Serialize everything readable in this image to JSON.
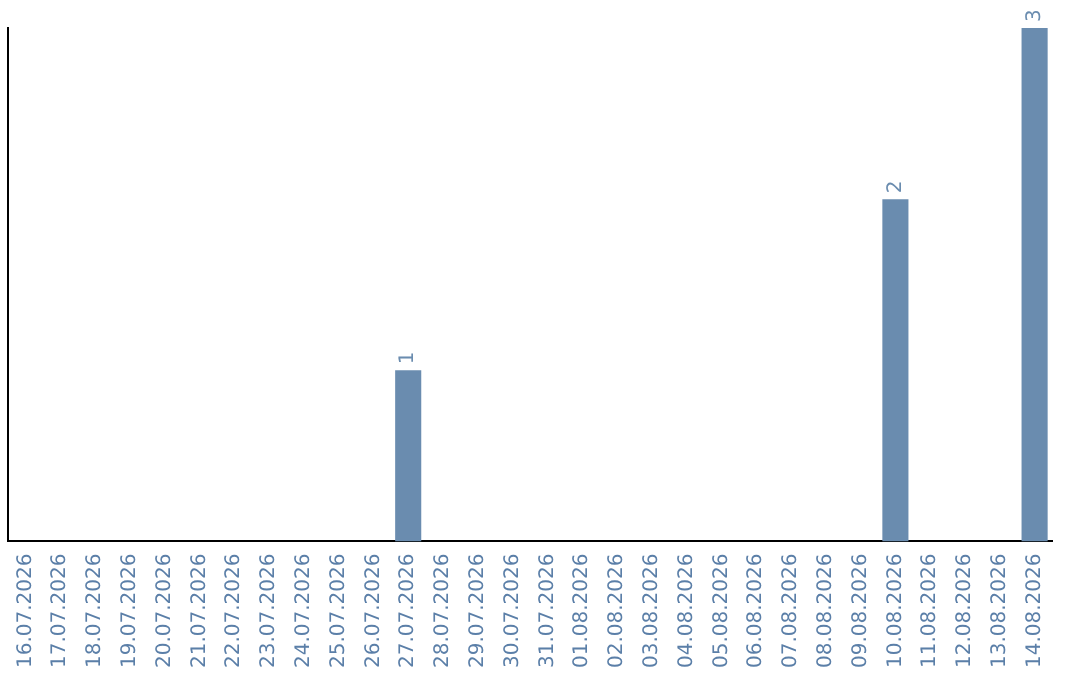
{
  "chart_data": {
    "type": "bar",
    "categories": [
      "16.07.2026",
      "17.07.2026",
      "18.07.2026",
      "19.07.2026",
      "20.07.2026",
      "21.07.2026",
      "22.07.2026",
      "23.07.2026",
      "24.07.2026",
      "25.07.2026",
      "26.07.2026",
      "27.07.2026",
      "28.07.2026",
      "29.07.2026",
      "30.07.2026",
      "31.07.2026",
      "01.08.2026",
      "02.08.2026",
      "03.08.2026",
      "04.08.2026",
      "05.08.2026",
      "06.08.2026",
      "07.08.2026",
      "08.08.2026",
      "09.08.2026",
      "10.08.2026",
      "11.08.2026",
      "12.08.2026",
      "13.08.2026",
      "14.08.2026"
    ],
    "values": [
      0,
      0,
      0,
      0,
      0,
      0,
      0,
      0,
      0,
      0,
      0,
      1,
      0,
      0,
      0,
      0,
      0,
      0,
      0,
      0,
      0,
      0,
      0,
      0,
      0,
      2,
      0,
      0,
      0,
      3
    ],
    "value_labels": [
      null,
      null,
      null,
      null,
      null,
      null,
      null,
      null,
      null,
      null,
      null,
      "1",
      null,
      null,
      null,
      null,
      null,
      null,
      null,
      null,
      null,
      null,
      null,
      null,
      null,
      "2",
      null,
      null,
      null,
      "3"
    ],
    "color": "#6a8caf",
    "grid": false,
    "legend": false
  }
}
